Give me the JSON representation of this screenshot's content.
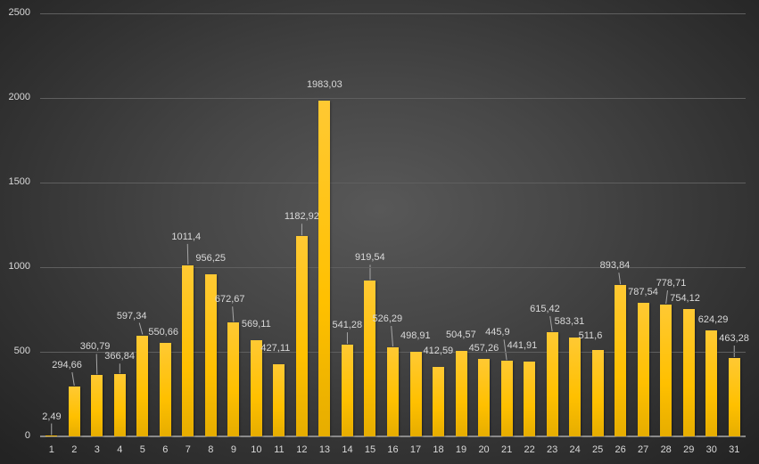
{
  "chart_data": {
    "type": "bar",
    "title": "",
    "xlabel": "",
    "ylabel": "",
    "ylim": [
      0,
      2500
    ],
    "yticks": [
      0,
      500,
      1000,
      1500,
      2000,
      2500
    ],
    "grid": true,
    "legend": null,
    "categories": [
      "1",
      "2",
      "3",
      "4",
      "5",
      "6",
      "7",
      "8",
      "9",
      "10",
      "11",
      "12",
      "13",
      "14",
      "15",
      "16",
      "17",
      "18",
      "19",
      "20",
      "21",
      "22",
      "23",
      "24",
      "25",
      "26",
      "27",
      "28",
      "29",
      "30",
      "31"
    ],
    "values": [
      2.49,
      294.66,
      360.79,
      366.84,
      597.34,
      550.66,
      1011.4,
      956.25,
      672.67,
      569.11,
      427.11,
      1182.92,
      1983.03,
      541.28,
      919.54,
      526.29,
      498.91,
      412.59,
      504.57,
      457.26,
      445.9,
      441.91,
      615.42,
      583.31,
      511.6,
      893.84,
      787.54,
      778.71,
      754.12,
      624.29,
      463.28
    ],
    "data_labels": [
      "2,49",
      "294,66",
      "360,79",
      "366,84",
      "597,34",
      "550,66",
      "1011,4",
      "956,25",
      "672,67",
      "569,11",
      "427,11",
      "1182,92",
      "1983,03",
      "541,28",
      "919,54",
      "526,29",
      "498,91",
      "412,59",
      "504,57",
      "457,26",
      "445,9",
      "441,91",
      "615,42",
      "583,31",
      "511,6",
      "893,84",
      "787,54",
      "778,71",
      "754,12",
      "624,29",
      "463,28"
    ],
    "colors": {
      "bar": "#ffc000",
      "background": "#3a3a3a",
      "gridline": "#5f5f5f",
      "text": "#d9d9d9"
    }
  }
}
